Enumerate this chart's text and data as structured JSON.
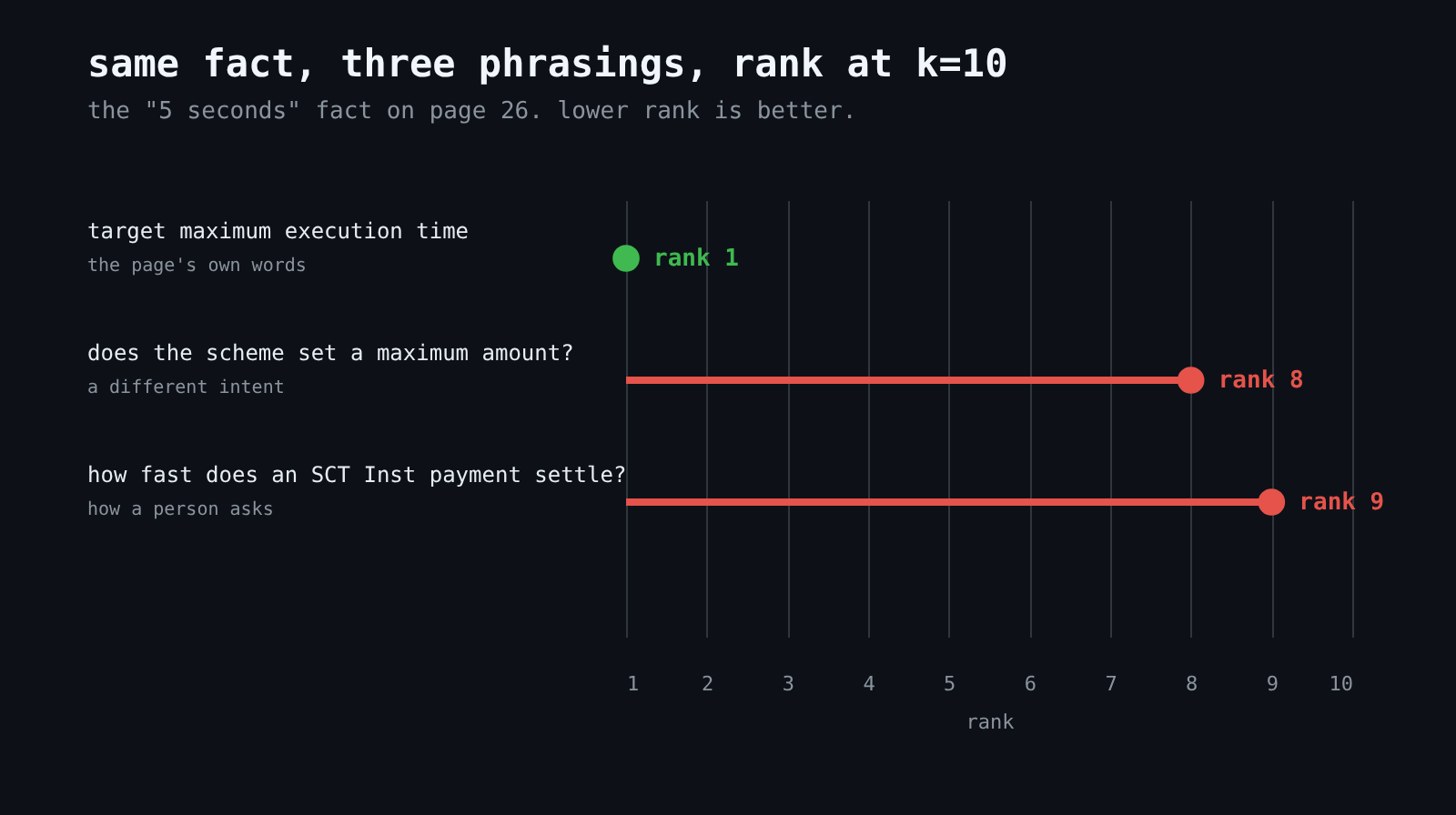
{
  "chart_data": {
    "type": "lollipop",
    "orientation": "horizontal",
    "title": "same fact, three phrasings, rank at k=10",
    "subtitle": "the \"5 seconds\" fact on page 26. lower rank is better.",
    "xlabel": "rank",
    "categories": [
      "target maximum execution time",
      "does the scheme set a maximum amount?",
      "how fast does an SCT Inst payment settle?"
    ],
    "values": [
      1,
      8,
      9
    ],
    "colors": [
      "#3fb950",
      "#e5534b",
      "#e5534b"
    ],
    "value_labels": [
      "rank 1",
      "rank 8",
      "rank 9"
    ],
    "xlim": [
      1,
      10
    ],
    "xticks": [
      1,
      2,
      3,
      4,
      5,
      6,
      7,
      8,
      9,
      10
    ],
    "grid": "x",
    "annotations": [
      "the page's own words",
      "a different intent",
      "how a person asks"
    ]
  }
}
